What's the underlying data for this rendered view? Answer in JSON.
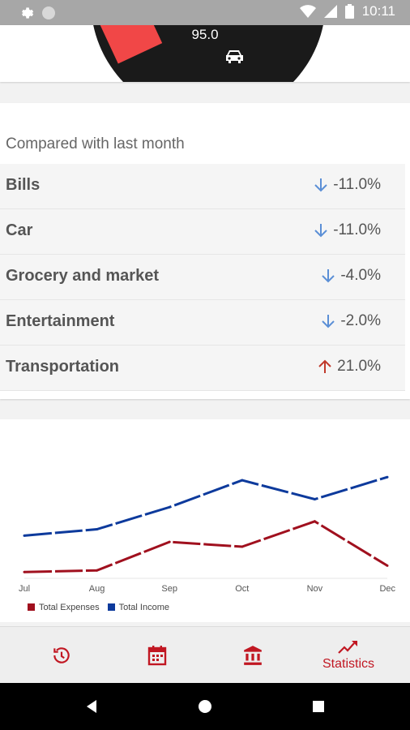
{
  "status_bar": {
    "time": "10:11"
  },
  "gauge": {
    "value": "95.0",
    "icon": "car-icon"
  },
  "comparison": {
    "title": "Compared with last month",
    "rows": [
      {
        "name": "Bills",
        "change": "-11.0%",
        "direction": "down"
      },
      {
        "name": "Car",
        "change": "-11.0%",
        "direction": "down"
      },
      {
        "name": "Grocery and market",
        "change": "-4.0%",
        "direction": "down"
      },
      {
        "name": "Entertainment",
        "change": "-2.0%",
        "direction": "down"
      },
      {
        "name": "Transportation",
        "change": "21.0%",
        "direction": "up"
      }
    ]
  },
  "chart_data": {
    "type": "line",
    "categories": [
      "Jul",
      "Aug",
      "Sep",
      "Oct",
      "Nov",
      "Dec"
    ],
    "series": [
      {
        "name": "Total Expenses",
        "color": "#a0101e",
        "values": [
          4,
          5,
          23,
          20,
          36,
          8
        ]
      },
      {
        "name": "Total Income",
        "color": "#0d3a9c",
        "values": [
          27,
          31,
          45,
          62,
          50,
          64
        ]
      }
    ],
    "ylim": [
      0,
      80
    ],
    "grid": false,
    "legend": "bottom-left"
  },
  "tabs": [
    {
      "icon": "history-icon",
      "label": ""
    },
    {
      "icon": "calendar-icon",
      "label": ""
    },
    {
      "icon": "bank-icon",
      "label": ""
    },
    {
      "icon": "trending-up-icon",
      "label": "Statistics",
      "active": true
    }
  ],
  "colors": {
    "accent": "#c11722",
    "up": "#c0392b",
    "down": "#5b8fd6"
  }
}
